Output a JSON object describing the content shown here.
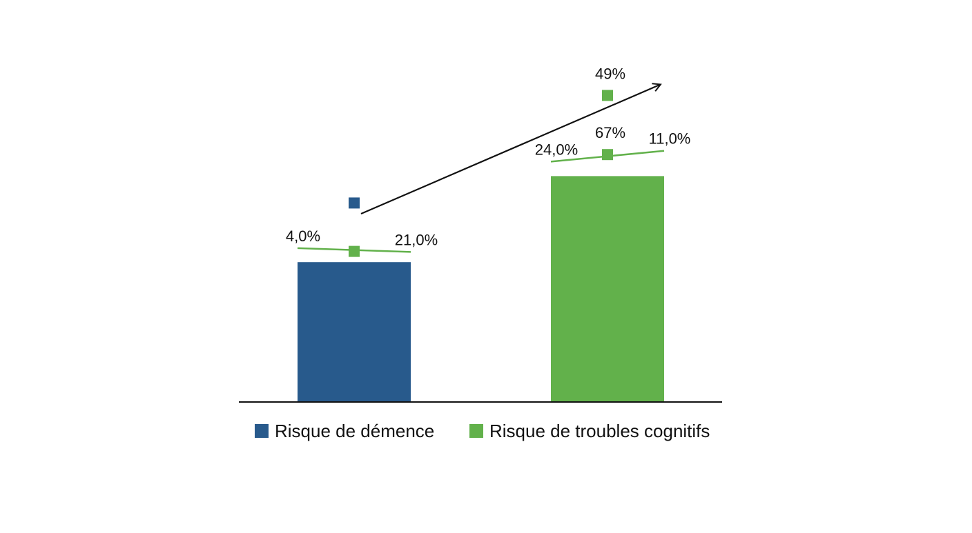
{
  "chart_data": {
    "type": "bar",
    "categories": [
      "Risque de démence",
      "Risque de troubles cognitifs"
    ],
    "values": [
      26,
      42
    ],
    "ylim": [
      0,
      60
    ],
    "grid": false,
    "legend_placement": "bottom",
    "colors": {
      "Risque de démence": "#285a8c",
      "Risque de troubles cognitifs": "#62b14b",
      "trend_arrow": "#111111",
      "axis": "#111111"
    },
    "series": [
      {
        "name": "Risque de démence",
        "bar": {
          "category": "Risque de démence",
          "value": 26
        },
        "marker": {
          "category": "Risque de démence",
          "value": 37
        }
      },
      {
        "name": "Risque de troubles cognitifs",
        "bar": {
          "category": "Risque de troubles cognitifs",
          "value": 42
        },
        "markers": [
          {
            "category": "Risque de démence",
            "value": 28,
            "label": ""
          },
          {
            "category": "Risque de troubles cognitifs",
            "value": 46,
            "label": "67%"
          },
          {
            "category": "Risque de troubles cognitifs",
            "value": 57,
            "label": "49%"
          }
        ]
      }
    ],
    "range_lines": [
      {
        "category": "Risque de démence",
        "left_value": 28.6,
        "right_value": 27.9,
        "left_label": "4,0%",
        "right_label": "21,0%"
      },
      {
        "category": "Risque de troubles cognitifs",
        "left_value": 44.7,
        "right_value": 46.7,
        "left_label": "24,0%",
        "right_label": "11,0%"
      }
    ],
    "trend_arrow": {
      "from": {
        "category": "Risque de démence",
        "value": 35
      },
      "to": {
        "category": "Risque de troubles cognitifs",
        "value": 59
      }
    },
    "legend": [
      {
        "label": "Risque de démence",
        "color": "#285a8c"
      },
      {
        "label": "Risque de troubles cognitifs",
        "color": "#62b14b"
      }
    ]
  }
}
